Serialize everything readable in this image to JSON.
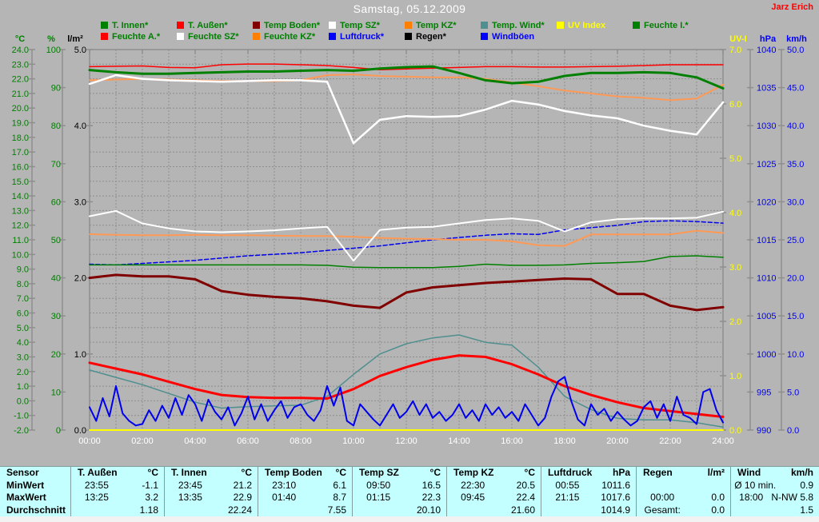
{
  "header": {
    "title": "Samstag, 05.12.2009",
    "watermark": "Jarz Erich"
  },
  "legend": {
    "rows": [
      [
        {
          "label": "T. Innen*",
          "color": "#008000",
          "text_color": "#008000"
        },
        {
          "label": "T. Außen*",
          "color": "#ff0000",
          "text_color": "#008000"
        },
        {
          "label": "Temp Boden*",
          "color": "#800000",
          "text_color": "#008000"
        },
        {
          "label": "Temp SZ*",
          "color": "#ffffff",
          "text_color": "#008000"
        },
        {
          "label": "Temp KZ*",
          "color": "#ff8000",
          "text_color": "#008000"
        },
        {
          "label": "Temp. Wind*",
          "color": "#4f8f8f",
          "text_color": "#008000"
        },
        {
          "label": "UV Index",
          "color": "#ffff00",
          "text_color": "#ffff00"
        },
        {
          "label": "Feuchte I.*",
          "color": "#008000",
          "text_color": "#008000"
        }
      ],
      [
        {
          "label": "Feuchte A.*",
          "color": "#ff0000",
          "text_color": "#008000"
        },
        {
          "label": "Feuchte SZ*",
          "color": "#ffffff",
          "text_color": "#008000"
        },
        {
          "label": "Feuchte KZ*",
          "color": "#ff8000",
          "text_color": "#008000"
        },
        {
          "label": "Luftdruck*",
          "color": "#0000ff",
          "text_color": "#0000ff"
        },
        {
          "label": "Regen*",
          "color": "#000000",
          "text_color": "#000000"
        },
        {
          "label": "Windböen",
          "color": "#0000ff",
          "text_color": "#0000ff"
        }
      ]
    ]
  },
  "chart_data": {
    "type": "line",
    "title": "Samstag, 05.12.2009",
    "grid": {
      "vertical_every_hours": 1,
      "horizontal_every_degC": 1,
      "style": "dashed"
    },
    "x_axis": {
      "unit": "time",
      "start_hour": 0,
      "end_hour": 24,
      "label_step_hours": 2,
      "tick_labels": [
        "00:00",
        "02:00",
        "04:00",
        "06:00",
        "08:00",
        "10:00",
        "12:00",
        "14:00",
        "16:00",
        "18:00",
        "20:00",
        "22:00",
        "24:00"
      ],
      "label_color": "#ffffff"
    },
    "y_axes": [
      {
        "id": "degC",
        "title": "°C",
        "min": -2,
        "max": 24,
        "step": 1,
        "decimals": 1,
        "color": "#008000",
        "side": "left"
      },
      {
        "id": "pct",
        "title": "%",
        "min": 0,
        "max": 100,
        "step": 10,
        "decimals": 0,
        "color": "#008000",
        "side": "left"
      },
      {
        "id": "lm2",
        "title": "l/m²",
        "min": 0,
        "max": 5,
        "step": 1,
        "decimals": 1,
        "color": "#000000",
        "side": "left"
      },
      {
        "id": "uvi",
        "title": "UV-I",
        "min": 0,
        "max": 7,
        "step": 1,
        "decimals": 1,
        "color": "#ffff00",
        "side": "right"
      },
      {
        "id": "hpa",
        "title": "hPa",
        "min": 990,
        "max": 1040,
        "step": 5,
        "decimals": 0,
        "color": "#0000ff",
        "side": "right"
      },
      {
        "id": "kmh",
        "title": "km/h",
        "min": 0,
        "max": 50,
        "step": 5,
        "decimals": 1,
        "color": "#0000ff",
        "side": "right"
      }
    ],
    "series": [
      {
        "name": "Luftdruck",
        "axis": "hpa",
        "color": "#0000ee",
        "width": 1.5,
        "dash": "5,3",
        "step_hours": 1,
        "values": [
          1011.8,
          1011.7,
          1011.9,
          1012.1,
          1012.3,
          1012.6,
          1012.9,
          1013.1,
          1013.3,
          1013.6,
          1013.9,
          1014.2,
          1014.6,
          1015.0,
          1015.3,
          1015.6,
          1015.8,
          1015.7,
          1016.3,
          1016.6,
          1016.9,
          1017.4,
          1017.5,
          1017.4,
          1017.2
        ]
      },
      {
        "name": "Feuchte KZ",
        "axis": "pct",
        "color": "#ff9955",
        "width": 2,
        "step_hours": 1,
        "values": [
          51.5,
          51.3,
          51.2,
          51.2,
          51.3,
          51.2,
          51.2,
          51.1,
          51.0,
          51.0,
          50.8,
          50.5,
          50.3,
          50.2,
          50.0,
          50.0,
          49.6,
          48.6,
          48.4,
          51.4,
          51.4,
          51.4,
          51.4,
          52.4,
          51.8
        ]
      },
      {
        "name": "Feuchte SZ",
        "axis": "pct",
        "color": "#ffffff",
        "width": 2,
        "step_hours": 1,
        "values": [
          56.2,
          57.6,
          54.3,
          53.0,
          52.2,
          52.0,
          52.2,
          52.5,
          53.0,
          53.4,
          44.5,
          52.6,
          53.2,
          53.4,
          54.3,
          55.2,
          55.6,
          55.0,
          52.2,
          54.6,
          55.4,
          55.6,
          55.6,
          55.8,
          57.4
        ]
      },
      {
        "name": "Feuchte I.",
        "axis": "pct",
        "color": "#008000",
        "width": 1.5,
        "step_hours": 1,
        "values": [
          43.4,
          43.4,
          43.4,
          43.4,
          43.4,
          43.4,
          43.4,
          43.4,
          43.4,
          43.3,
          42.8,
          42.7,
          42.7,
          42.7,
          43.0,
          43.6,
          43.3,
          43.3,
          43.4,
          43.8,
          44.0,
          44.3,
          45.6,
          45.8,
          45.4
        ]
      },
      {
        "name": "Temp Boden",
        "axis": "degC",
        "color": "#800000",
        "width": 3,
        "step_hours": 1,
        "values": [
          8.4,
          8.6,
          8.5,
          8.5,
          8.3,
          7.5,
          7.25,
          7.1,
          7.0,
          6.8,
          6.5,
          6.35,
          7.4,
          7.75,
          7.9,
          8.05,
          8.15,
          8.25,
          8.35,
          8.3,
          7.3,
          7.3,
          6.5,
          6.2,
          6.4
        ]
      },
      {
        "name": "Temp. Wind",
        "axis": "degC",
        "color": "#4f8f8f",
        "width": 1.5,
        "step_hours": 1,
        "values": [
          2.1,
          1.6,
          1.1,
          0.5,
          -0.1,
          -0.5,
          -0.4,
          -0.35,
          -0.3,
          0.3,
          1.8,
          3.2,
          3.9,
          4.3,
          4.5,
          4.0,
          3.8,
          2.3,
          0.3,
          -0.6,
          -1.2,
          -1.3,
          -1.3,
          -1.5,
          -1.8
        ]
      },
      {
        "name": "T. Außen",
        "axis": "degC",
        "color": "#ff0000",
        "width": 3,
        "step_hours": 1,
        "values": [
          2.6,
          2.2,
          1.8,
          1.3,
          0.8,
          0.4,
          0.25,
          0.2,
          0.2,
          0.15,
          0.8,
          1.7,
          2.3,
          2.8,
          3.1,
          3.0,
          2.5,
          1.8,
          1.0,
          0.4,
          -0.1,
          -0.5,
          -0.7,
          -0.9,
          -1.1
        ]
      },
      {
        "name": "Regen",
        "axis": "lm2",
        "color": "#000000",
        "width": 1.5,
        "step_hours": 12,
        "values": [
          0,
          0,
          0
        ]
      },
      {
        "name": "Windböen",
        "axis": "kmh",
        "color": "#0000ee",
        "width": 2,
        "step_hours": 0.25,
        "values": [
          3.0,
          1.2,
          4.2,
          1.8,
          5.8,
          2.2,
          1.2,
          0.6,
          0.8,
          2.6,
          1.2,
          3.2,
          1.6,
          4.2,
          2.0,
          4.6,
          3.4,
          1.2,
          4.0,
          2.4,
          1.4,
          3.0,
          0.6,
          2.2,
          4.4,
          1.4,
          3.4,
          1.2,
          2.6,
          3.8,
          1.6,
          3.0,
          3.4,
          2.0,
          1.2,
          2.6,
          5.8,
          3.2,
          5.6,
          1.2,
          0.6,
          3.4,
          2.4,
          1.4,
          0.6,
          2.0,
          3.4,
          1.6,
          2.4,
          3.8,
          2.0,
          3.4,
          1.6,
          2.4,
          1.2,
          2.0,
          3.4,
          1.6,
          2.6,
          1.2,
          3.4,
          2.0,
          3.0,
          1.6,
          2.4,
          1.2,
          3.4,
          2.0,
          0.6,
          1.6,
          4.4,
          6.4,
          7.0,
          3.8,
          1.4,
          0.6,
          3.4,
          2.0,
          2.8,
          1.2,
          2.4,
          1.4,
          0.6,
          1.2,
          3.0,
          3.8,
          1.6,
          3.4,
          1.2,
          4.4,
          2.0,
          1.6,
          0.8,
          5.0,
          5.4,
          2.6,
          1.0
        ]
      },
      {
        "name": "UV Index",
        "axis": "uvi",
        "color": "#ffff00",
        "width": 2,
        "step_hours": 12,
        "values": [
          0,
          0,
          0
        ]
      },
      {
        "name": "Feuchte A.",
        "axis": "pct",
        "color": "#ff0000",
        "width": 1.5,
        "step_hours": 1,
        "values": [
          95.5,
          95.6,
          95.7,
          95.3,
          95.2,
          96.0,
          96.2,
          96.2,
          96.0,
          95.8,
          95.3,
          94.7,
          94.9,
          95.1,
          95.3,
          95.5,
          95.5,
          95.4,
          95.4,
          95.5,
          95.6,
          95.8,
          96.0,
          96.0,
          96.0
        ]
      },
      {
        "name": "Temp KZ",
        "axis": "degC",
        "color": "#ff9955",
        "width": 2,
        "step_hours": 1,
        "values": [
          21.9,
          21.95,
          22.0,
          21.95,
          21.9,
          21.85,
          21.85,
          21.85,
          21.9,
          22.25,
          22.3,
          22.2,
          22.15,
          22.1,
          22.1,
          22.0,
          21.75,
          21.5,
          21.2,
          21.0,
          20.8,
          20.7,
          20.55,
          20.65,
          21.6
        ]
      },
      {
        "name": "Temp SZ",
        "axis": "degC",
        "color": "#ffffff",
        "width": 2.5,
        "step_hours": 1,
        "values": [
          21.65,
          22.25,
          22.0,
          21.9,
          21.85,
          21.8,
          21.85,
          21.9,
          21.9,
          21.8,
          17.6,
          19.2,
          19.45,
          19.4,
          19.45,
          19.9,
          20.5,
          20.25,
          19.8,
          19.5,
          19.3,
          18.8,
          18.45,
          18.2,
          20.4
        ]
      },
      {
        "name": "T. Innen",
        "axis": "degC",
        "color": "#008000",
        "width": 3,
        "step_hours": 1,
        "values": [
          22.6,
          22.45,
          22.35,
          22.35,
          22.4,
          22.45,
          22.5,
          22.5,
          22.55,
          22.6,
          22.55,
          22.7,
          22.8,
          22.85,
          22.4,
          21.9,
          21.7,
          21.8,
          22.2,
          22.4,
          22.4,
          22.45,
          22.4,
          22.1,
          21.35
        ]
      }
    ]
  },
  "table": {
    "corner_label": "Sensor",
    "columns": [
      {
        "name": "T. Außen",
        "unit": "°C"
      },
      {
        "name": "T. Innen",
        "unit": "°C"
      },
      {
        "name": "Temp Boden",
        "unit": "°C"
      },
      {
        "name": "Temp SZ",
        "unit": "°C"
      },
      {
        "name": "Temp KZ",
        "unit": "°C"
      },
      {
        "name": "Luftdruck",
        "unit": "hPa"
      },
      {
        "name": "Regen",
        "unit": "l/m²"
      },
      {
        "name": "Wind",
        "unit": "km/h"
      }
    ],
    "rows": [
      {
        "label": "MinWert",
        "cells": [
          [
            "23:55",
            "-1.1"
          ],
          [
            "23:45",
            "21.2"
          ],
          [
            "23:10",
            "6.1"
          ],
          [
            "09:50",
            "16.5"
          ],
          [
            "22:30",
            "20.5"
          ],
          [
            "00:55",
            "1011.6"
          ],
          [
            "",
            ""
          ],
          [
            "Ø 10 min.",
            "0.9"
          ]
        ]
      },
      {
        "label": "MaxWert",
        "cells": [
          [
            "13:25",
            "3.2"
          ],
          [
            "13:35",
            "22.9"
          ],
          [
            "01:40",
            "8.7"
          ],
          [
            "01:15",
            "22.3"
          ],
          [
            "09:45",
            "22.4"
          ],
          [
            "21:15",
            "1017.6"
          ],
          [
            "00:00",
            "0.0"
          ],
          [
            "18:00",
            "N-NW 5.8"
          ]
        ]
      },
      {
        "label": "Durchschnitt",
        "cells": [
          [
            "",
            "1.18"
          ],
          [
            "",
            "22.24"
          ],
          [
            "",
            "7.55"
          ],
          [
            "",
            "20.10"
          ],
          [
            "",
            "21.60"
          ],
          [
            "",
            "1014.9"
          ],
          [
            "Gesamt:",
            "0.0"
          ],
          [
            "",
            "1.5"
          ]
        ]
      }
    ]
  },
  "colors": {
    "background": "#b5b5b5",
    "grid": "#8e8e8e",
    "table_background": "#c4ffff",
    "title_text": "#ffffff",
    "watermark_text": "#ff0000"
  }
}
